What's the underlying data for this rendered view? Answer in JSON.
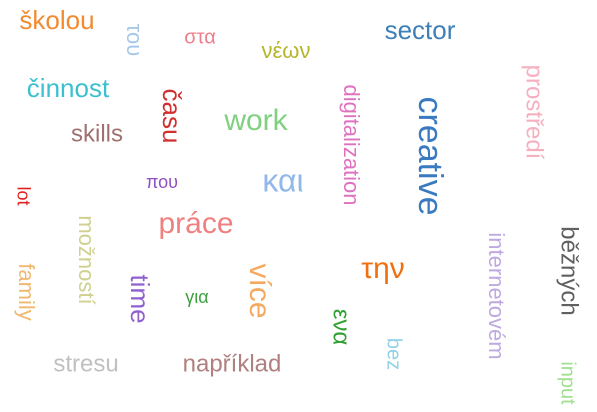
{
  "words": [
    {
      "text": "školou",
      "color": "#f28a30"
    },
    {
      "text": "του",
      "color": "#a8c8e8"
    },
    {
      "text": "στα",
      "color": "#f07e8a"
    },
    {
      "text": "νέων",
      "color": "#b5b52a"
    },
    {
      "text": "sector",
      "color": "#3e7fb8"
    },
    {
      "text": "prostředí",
      "color": "#f5b0c0"
    },
    {
      "text": "činnost",
      "color": "#3cc0d0"
    },
    {
      "text": "času",
      "color": "#d03030"
    },
    {
      "text": "digitalization",
      "color": "#e070c0"
    },
    {
      "text": "creative",
      "color": "#3a7ac0"
    },
    {
      "text": "work",
      "color": "#80d080"
    },
    {
      "text": "skills",
      "color": "#a07070"
    },
    {
      "text": "lot",
      "color": "#e02020"
    },
    {
      "text": "που",
      "color": "#9050c0"
    },
    {
      "text": "και",
      "color": "#90b8e8"
    },
    {
      "text": "možností",
      "color": "#d0d090"
    },
    {
      "text": "práce",
      "color": "#f08080"
    },
    {
      "text": "internetovém",
      "color": "#c0a8e0"
    },
    {
      "text": "běžných",
      "color": "#606060"
    },
    {
      "text": "family",
      "color": "#f0b870"
    },
    {
      "text": "time",
      "color": "#9060d0"
    },
    {
      "text": "για",
      "color": "#40a040"
    },
    {
      "text": "více",
      "color": "#f5a860"
    },
    {
      "text": "την",
      "color": "#f07010"
    },
    {
      "text": "ενα",
      "color": "#30a030"
    },
    {
      "text": "bez",
      "color": "#90d0e8"
    },
    {
      "text": "stresu",
      "color": "#c0c0c0"
    },
    {
      "text": "například",
      "color": "#b08080"
    },
    {
      "text": "input",
      "color": "#a0e090"
    }
  ]
}
